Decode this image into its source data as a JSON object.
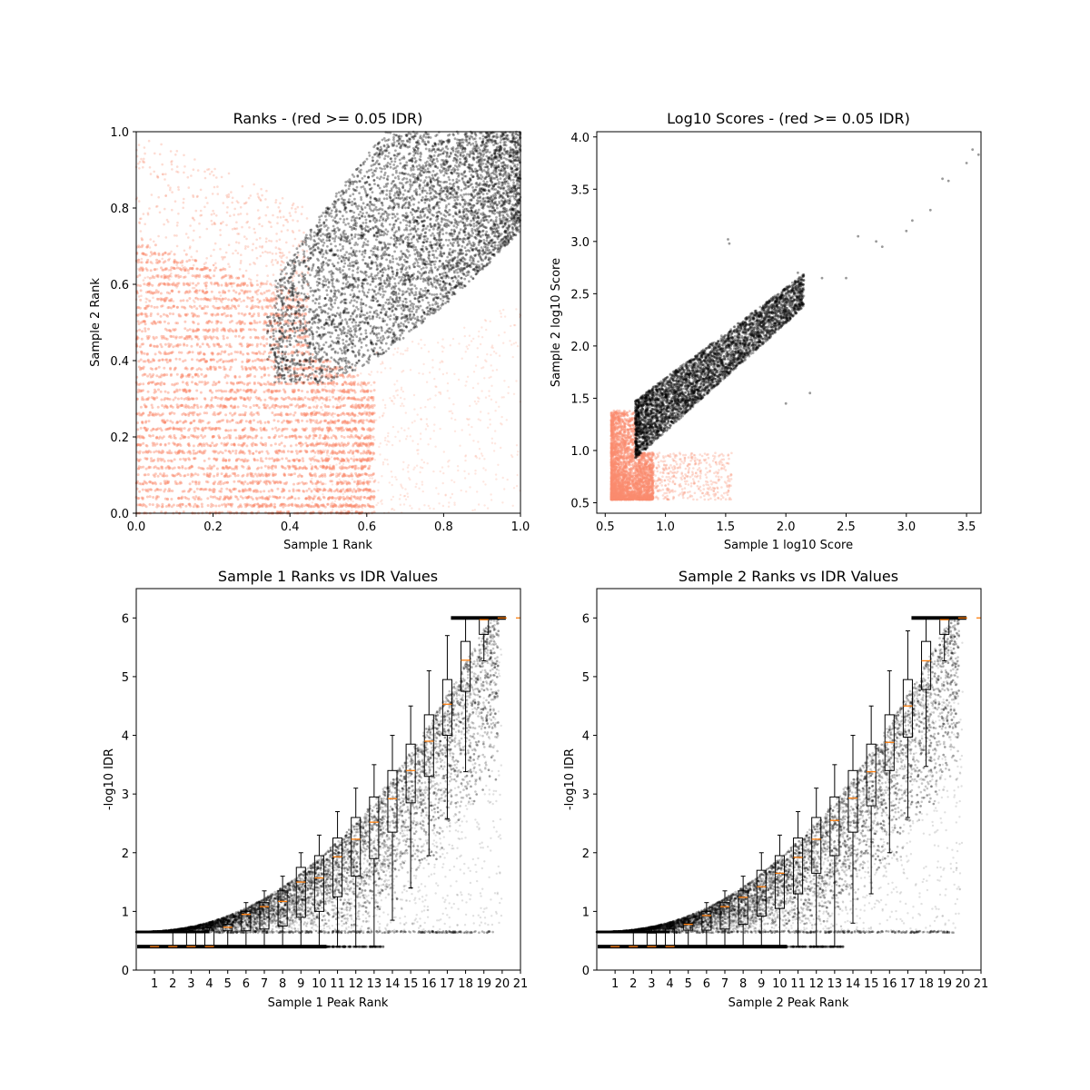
{
  "chart_data": [
    {
      "id": "ranks",
      "type": "scatter",
      "title": "Ranks - (red >= 0.05 IDR)",
      "xlabel": "Sample 1 Rank",
      "ylabel": "Sample 2 Rank",
      "xlim": [
        0.0,
        1.0
      ],
      "ylim": [
        0.0,
        1.0
      ],
      "xticks": [
        "0.0",
        "0.2",
        "0.4",
        "0.6",
        "0.8",
        "1.0"
      ],
      "yticks": [
        "0.0",
        "0.2",
        "0.4",
        "0.6",
        "0.8",
        "1.0"
      ],
      "grid": false,
      "series": [
        {
          "role": "idr_above_0.05",
          "color": "#fa8c6e",
          "alpha": 0.35,
          "region": "x 0.0-0.62, y 0.0-0.72 plus sparse scatter up to y 1.0"
        },
        {
          "role": "idr_below_0.05",
          "color": "#000000",
          "alpha": 0.3,
          "region": "diagonal band from (0.34, 0.34) to (1.0, 1.0)"
        }
      ]
    },
    {
      "id": "scores",
      "type": "scatter",
      "title": "Log10 Scores - (red >= 0.05 IDR)",
      "xlabel": "Sample 1 log10 Score",
      "ylabel": "Sample 2 log10 Score",
      "xlim": [
        0.43,
        3.62
      ],
      "ylim": [
        0.4,
        4.05
      ],
      "xticks": [
        "0.5",
        "1.0",
        "1.5",
        "2.0",
        "2.5",
        "3.0",
        "3.5"
      ],
      "yticks": [
        "0.5",
        "1.0",
        "1.5",
        "2.0",
        "2.5",
        "3.0",
        "3.5",
        "4.0"
      ],
      "grid": false,
      "series": [
        {
          "role": "idr_above_0.05",
          "color": "#fa8c6e",
          "alpha": 0.35,
          "region": "x 0.55-0.9, y 0.53-1.4"
        },
        {
          "role": "idr_below_0.05",
          "color": "#000000",
          "alpha": 0.3,
          "region": "diagonal band from (0.75, 0.93) to (2.3, 2.8) with outliers up to (3.6, 3.9)"
        }
      ]
    },
    {
      "id": "s1_idr",
      "type": "scatter",
      "title": "Sample 1 Ranks vs IDR Values",
      "xlabel": "Sample 1 Peak Rank",
      "ylabel": "-log10 IDR",
      "xlim": [
        0,
        21
      ],
      "ylim": [
        0,
        6.5
      ],
      "xticks": [
        "1",
        "2",
        "3",
        "4",
        "5",
        "6",
        "7",
        "8",
        "9",
        "10",
        "11",
        "12",
        "13",
        "14",
        "15",
        "16",
        "17",
        "18",
        "19",
        "20",
        "21"
      ],
      "yticks": [
        "0",
        "1",
        "2",
        "3",
        "4",
        "5",
        "6"
      ],
      "grid": false,
      "boxplot": {
        "positions": [
          1,
          2,
          3,
          4,
          5,
          6,
          7,
          8,
          9,
          10,
          11,
          12,
          13,
          14,
          15,
          16,
          17,
          18,
          19,
          20
        ],
        "medians": [
          0.4,
          0.4,
          0.4,
          0.4,
          0.73,
          0.95,
          1.08,
          1.17,
          1.5,
          1.57,
          1.93,
          2.23,
          2.52,
          2.92,
          3.4,
          3.9,
          4.53,
          5.28,
          5.97,
          6.0
        ],
        "q1": [
          0.4,
          0.4,
          0.4,
          0.4,
          0.67,
          0.67,
          0.7,
          0.75,
          0.9,
          1.0,
          1.25,
          1.6,
          1.9,
          2.35,
          2.85,
          3.3,
          4.0,
          4.75,
          5.72,
          6.0
        ],
        "q3": [
          0.4,
          0.4,
          0.65,
          0.68,
          0.78,
          1.0,
          1.15,
          1.35,
          1.75,
          1.95,
          2.25,
          2.6,
          2.95,
          3.4,
          3.85,
          4.35,
          4.95,
          5.6,
          5.97,
          6.0
        ],
        "whislo": [
          0.4,
          0.4,
          0.4,
          0.4,
          0.4,
          0.4,
          0.4,
          0.4,
          0.4,
          0.4,
          0.4,
          0.4,
          0.4,
          0.85,
          1.4,
          1.95,
          2.58,
          3.38,
          5.27,
          6.0
        ],
        "whishi": [
          0.4,
          0.65,
          0.68,
          0.72,
          0.85,
          1.15,
          1.35,
          1.6,
          2.0,
          2.3,
          2.7,
          3.1,
          3.5,
          4.0,
          4.5,
          5.1,
          5.7,
          6.0,
          6.0,
          6.0
        ],
        "median_color": "#ff7f0e"
      },
      "scatter_color": "#000000"
    },
    {
      "id": "s2_idr",
      "type": "scatter",
      "title": "Sample 2 Ranks vs IDR Values",
      "xlabel": "Sample 2 Peak Rank",
      "ylabel": "-log10 IDR",
      "xlim": [
        0,
        21
      ],
      "ylim": [
        0,
        6.5
      ],
      "xticks": [
        "1",
        "2",
        "3",
        "4",
        "5",
        "6",
        "7",
        "8",
        "9",
        "10",
        "11",
        "12",
        "13",
        "14",
        "15",
        "16",
        "17",
        "18",
        "19",
        "20",
        "21"
      ],
      "yticks": [
        "0",
        "1",
        "2",
        "3",
        "4",
        "5",
        "6"
      ],
      "grid": false,
      "boxplot": {
        "positions": [
          1,
          2,
          3,
          4,
          5,
          6,
          7,
          8,
          9,
          10,
          11,
          12,
          13,
          14,
          15,
          16,
          17,
          18,
          19,
          20
        ],
        "medians": [
          0.4,
          0.4,
          0.4,
          0.4,
          0.78,
          0.93,
          1.08,
          1.24,
          1.42,
          1.65,
          1.92,
          2.23,
          2.55,
          2.93,
          3.38,
          3.88,
          4.5,
          5.27,
          5.97,
          6.0
        ],
        "q1": [
          0.4,
          0.4,
          0.4,
          0.4,
          0.68,
          0.68,
          0.7,
          0.78,
          0.92,
          1.05,
          1.3,
          1.65,
          1.95,
          2.35,
          2.8,
          3.4,
          3.97,
          4.78,
          5.72,
          6.0
        ],
        "q3": [
          0.4,
          0.4,
          0.63,
          0.7,
          0.8,
          1.0,
          1.15,
          1.35,
          1.7,
          1.95,
          2.25,
          2.6,
          2.95,
          3.4,
          3.85,
          4.35,
          4.95,
          5.6,
          5.97,
          6.0
        ],
        "whislo": [
          0.4,
          0.4,
          0.4,
          0.4,
          0.4,
          0.4,
          0.4,
          0.4,
          0.4,
          0.4,
          0.4,
          0.4,
          0.4,
          0.8,
          1.3,
          2.0,
          2.6,
          3.47,
          5.27,
          6.0
        ],
        "whishi": [
          0.4,
          0.65,
          0.7,
          0.74,
          0.88,
          1.15,
          1.35,
          1.6,
          2.0,
          2.3,
          2.7,
          3.1,
          3.5,
          4.0,
          4.5,
          5.1,
          5.78,
          6.0,
          6.0,
          6.0
        ],
        "median_color": "#ff7f0e"
      },
      "scatter_color": "#000000"
    }
  ]
}
